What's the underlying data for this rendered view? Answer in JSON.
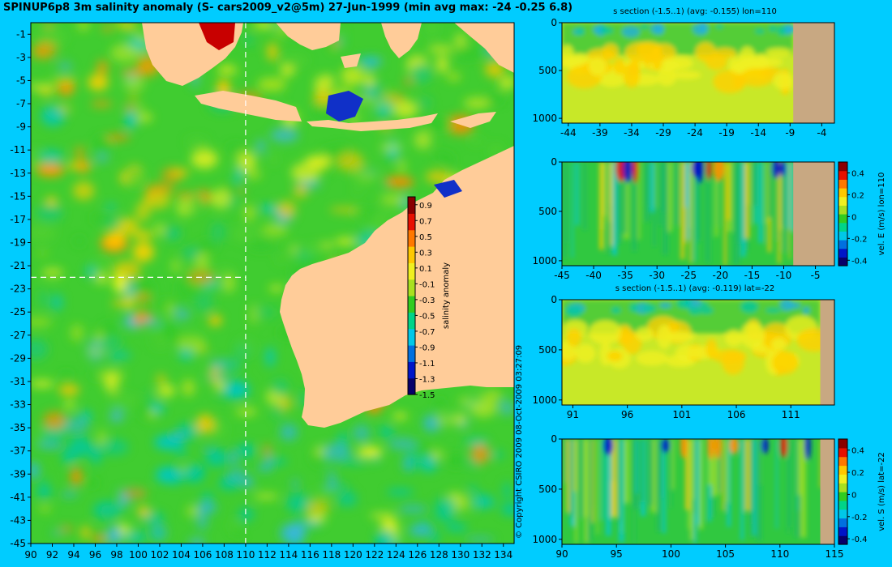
{
  "title": "SPINUP6p8 3m salinity anomaly (S- cars2009_v2@5m) 27-Jun-1999 (min avg max: -24 -0.25 6.8)",
  "copyright": "© Copyright CSIRO 2009   08-Oct-2009 03:27:09",
  "colors": {
    "background": "#00ccff",
    "land": "#ffcc99",
    "section_land": "#c8a882",
    "colormap": [
      "#08006a",
      "#0015c8",
      "#0070e0",
      "#00c8e8",
      "#00d488",
      "#30cc20",
      "#a8e020",
      "#f0f020",
      "#ffc800",
      "#ff7800",
      "#e81000",
      "#8a0000"
    ]
  },
  "chart_data": [
    {
      "id": "map",
      "type": "heatmap",
      "variable": "salinity anomaly",
      "x_ticks": [
        90,
        92,
        94,
        96,
        98,
        100,
        102,
        104,
        106,
        108,
        110,
        112,
        114,
        116,
        118,
        120,
        122,
        124,
        126,
        128,
        130,
        132,
        134
      ],
      "y_ticks": [
        -1,
        -3,
        -5,
        -7,
        -9,
        -11,
        -13,
        -15,
        -17,
        -19,
        -21,
        -23,
        -25,
        -27,
        -29,
        -31,
        -33,
        -35,
        -37,
        -39,
        -41,
        -43,
        -45
      ],
      "xlim": [
        90,
        135
      ],
      "ylim": [
        -45,
        0
      ],
      "section_lines": {
        "lon": 110,
        "lat": -22
      },
      "colorbar": {
        "label": "salinity anomaly",
        "ticks": [
          "0.9",
          "0.7",
          "0.5",
          "0.3",
          "0.1",
          "-0.1",
          "-0.3",
          "-0.5",
          "-0.7",
          "-0.9",
          "-1.1",
          "-1.3",
          "-1.5"
        ],
        "range": [
          -1.5,
          1.0
        ]
      }
    },
    {
      "id": "s-section-lon110",
      "type": "heatmap",
      "title": "s section (-1.5..1) (avg: -0.155) lon=110",
      "x_ticks": [
        "-44",
        "-39",
        "-34",
        "-29",
        "-24",
        "-19",
        "-14",
        "-9",
        "-4"
      ],
      "y_ticks": [
        "0",
        "500",
        "1000"
      ],
      "xlim": [
        -45,
        -2
      ],
      "ylim": [
        1050,
        0
      ],
      "land_from": -8.5
    },
    {
      "id": "velE-section-lon110",
      "type": "heatmap",
      "x_ticks": [
        "-45",
        "-40",
        "-35",
        "-30",
        "-25",
        "-20",
        "-15",
        "-10",
        "-5"
      ],
      "y_ticks": [
        "0",
        "500",
        "1000"
      ],
      "xlim": [
        -45,
        -2
      ],
      "ylim": [
        1050,
        0
      ],
      "land_from": -8.5,
      "colorbar": {
        "label": "vel. E (m/s) lon=110",
        "ticks": [
          "0.4",
          "0.2",
          "0",
          "-0.2",
          "-0.4"
        ],
        "range": [
          -0.45,
          0.5
        ]
      }
    },
    {
      "id": "s-section-lat22",
      "type": "heatmap",
      "title": "s section (-1.5..1) (avg: -0.119) lat=-22",
      "x_ticks": [
        "91",
        "96",
        "101",
        "106",
        "111"
      ],
      "y_ticks": [
        "0",
        "500",
        "1000"
      ],
      "xlim": [
        90,
        115
      ],
      "ylim": [
        1050,
        0
      ],
      "land_from": 113.7
    },
    {
      "id": "velS-section-lat22",
      "type": "heatmap",
      "x_ticks": [
        "90",
        "95",
        "100",
        "105",
        "110",
        "115"
      ],
      "y_ticks": [
        "0",
        "500",
        "1000"
      ],
      "xlim": [
        90,
        115
      ],
      "ylim": [
        1050,
        0
      ],
      "land_from": 113.7,
      "colorbar": {
        "label": "vel. S (m/s) lat=-22",
        "ticks": [
          "0.4",
          "0.2",
          "0",
          "-0.2",
          "-0.4"
        ],
        "range": [
          -0.45,
          0.5
        ]
      }
    }
  ]
}
